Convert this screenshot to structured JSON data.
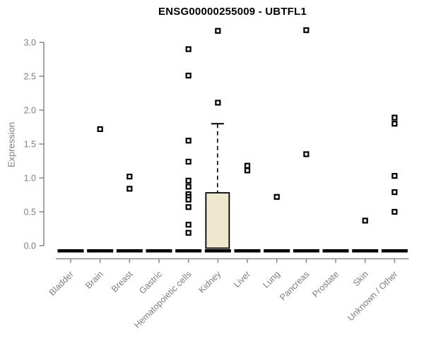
{
  "chart_data": {
    "type": "boxplot",
    "title": "ENSG00000255009 - UBTFL1",
    "ylabel": "Expression",
    "xlabel": "",
    "ylim": [
      0,
      3.2
    ],
    "yticks": [
      "0.0",
      "0.5",
      "1.0",
      "1.5",
      "2.0",
      "2.5",
      "3.0"
    ],
    "ytick_values": [
      0,
      0.5,
      1.0,
      1.5,
      2.0,
      2.5,
      3.0
    ],
    "grid": "off",
    "legend": "none",
    "categories": [
      "Bladder",
      "Brain",
      "Breast",
      "Gastric",
      "Hematopoietic cells",
      "Kidney",
      "Liver",
      "Lung",
      "Pancreas",
      "Prostate",
      "Skin",
      "Unknown / Other"
    ],
    "series": [
      {
        "category": "Bladder",
        "median": 0,
        "outliers": []
      },
      {
        "category": "Brain",
        "median": 0,
        "outliers": [
          1.72
        ]
      },
      {
        "category": "Breast",
        "median": 0,
        "outliers": [
          1.02,
          0.84
        ]
      },
      {
        "category": "Gastric",
        "median": 0,
        "outliers": []
      },
      {
        "category": "Hematopoietic cells",
        "median": 0,
        "outliers": [
          2.9,
          2.51,
          1.55,
          1.24,
          0.96,
          0.87,
          0.76,
          0.72,
          0.68,
          0.57,
          0.31,
          0.19
        ]
      },
      {
        "category": "Kidney",
        "median": 0,
        "q1": 0,
        "q3": 0.78,
        "whisker_high": 1.8,
        "whisker_style": "dashed",
        "outliers": [
          3.17,
          2.11
        ]
      },
      {
        "category": "Liver",
        "median": 0,
        "outliers": [
          1.18,
          1.11
        ]
      },
      {
        "category": "Lung",
        "median": 0,
        "outliers": [
          0.72
        ]
      },
      {
        "category": "Pancreas",
        "median": 0,
        "outliers": [
          3.18,
          1.35
        ]
      },
      {
        "category": "Prostate",
        "median": 0,
        "outliers": []
      },
      {
        "category": "Skin",
        "median": 0,
        "outliers": [
          0.37
        ]
      },
      {
        "category": "Unknown / Other",
        "median": 0,
        "outliers": [
          1.89,
          1.8,
          1.03,
          0.79,
          0.5
        ]
      }
    ],
    "point_symbol": "open-square",
    "colors": {
      "background": "#ffffff",
      "title_text": "#000000",
      "axis_line": "#888888",
      "tick_text": "#7e7e7e",
      "box_fill": "#ede8ce",
      "box_border": "#000000",
      "median_bar": "#000000",
      "point": "#000000"
    }
  }
}
